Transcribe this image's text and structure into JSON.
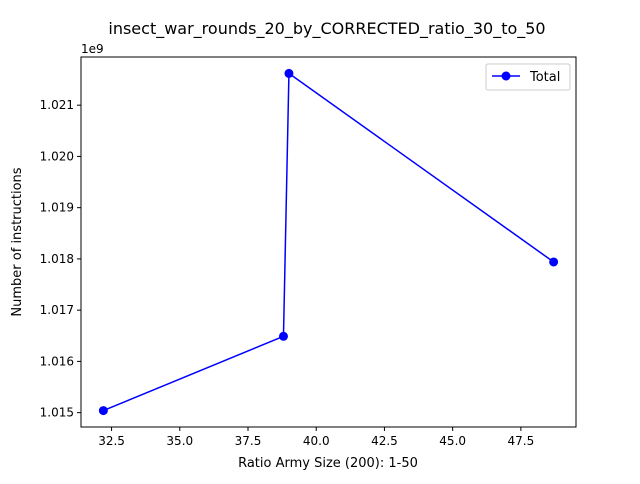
{
  "chart_data": {
    "type": "line",
    "title": "insect_war_rounds_20_by_CORRECTED_ratio_30_to_50",
    "xlabel": "Ratio Army Size (200): 1-50",
    "ylabel": "Number of instructions",
    "y_offset_text": "1e9",
    "xlim": [
      31.38,
      49.52
    ],
    "ylim": [
      1014.72,
      1021.94
    ],
    "x_ticks": [
      32.5,
      35.0,
      37.5,
      40.0,
      42.5,
      45.0,
      47.5
    ],
    "x_tick_labels": [
      "32.5",
      "35.0",
      "37.5",
      "40.0",
      "42.5",
      "45.0",
      "47.5"
    ],
    "y_ticks": [
      1015,
      1016,
      1017,
      1018,
      1019,
      1020,
      1021
    ],
    "y_tick_labels": [
      "1.015",
      "1.016",
      "1.017",
      "1.018",
      "1.019",
      "1.020",
      "1.021"
    ],
    "grid": false,
    "legend_position": "top-right",
    "series": [
      {
        "name": "Total",
        "color": "#0000ff",
        "marker": "circle",
        "x": [
          32.2,
          38.8,
          39.0,
          48.7
        ],
        "y": [
          1015.04,
          1016.49,
          1021.62,
          1017.94
        ]
      }
    ]
  }
}
